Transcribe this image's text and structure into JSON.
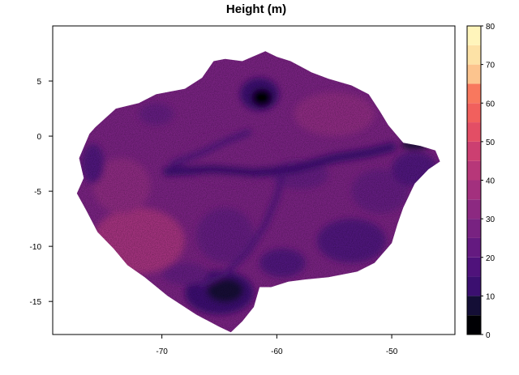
{
  "title": "Height (m)",
  "map": {
    "x_range": [
      -79.5,
      -44.5
    ],
    "y_range": [
      -18,
      10
    ],
    "x_ticks": [
      -70,
      -60,
      -50
    ],
    "y_ticks": [
      5,
      0,
      -5,
      -10,
      -15
    ],
    "region_outline": [
      [
        -75.8,
        0.8
      ],
      [
        -74.0,
        2.5
      ],
      [
        -72.0,
        3.0
      ],
      [
        -70.5,
        3.8
      ],
      [
        -68.0,
        4.3
      ],
      [
        -66.5,
        5.3
      ],
      [
        -65.5,
        6.8
      ],
      [
        -64.5,
        7.0
      ],
      [
        -63.0,
        6.8
      ],
      [
        -61.0,
        7.7
      ],
      [
        -60.0,
        7.2
      ],
      [
        -58.8,
        6.8
      ],
      [
        -57.0,
        5.8
      ],
      [
        -55.5,
        5.2
      ],
      [
        -53.5,
        4.6
      ],
      [
        -52.0,
        3.8
      ],
      [
        -51.0,
        2.2
      ],
      [
        -50.3,
        1.0
      ],
      [
        -49.0,
        -0.6
      ],
      [
        -47.5,
        -0.9
      ],
      [
        -46.2,
        -1.3
      ],
      [
        -45.8,
        -2.3
      ],
      [
        -46.8,
        -3.0
      ],
      [
        -48.0,
        -4.3
      ],
      [
        -49.0,
        -6.5
      ],
      [
        -49.5,
        -8.0
      ],
      [
        -50.0,
        -9.7
      ],
      [
        -51.5,
        -11.5
      ],
      [
        -53.0,
        -12.3
      ],
      [
        -55.5,
        -12.8
      ],
      [
        -57.5,
        -13.0
      ],
      [
        -59.0,
        -13.2
      ],
      [
        -60.5,
        -13.7
      ],
      [
        -61.5,
        -13.7
      ],
      [
        -62.0,
        -15.5
      ],
      [
        -63.0,
        -16.8
      ],
      [
        -64.0,
        -17.8
      ],
      [
        -65.0,
        -17.3
      ],
      [
        -67.0,
        -16.2
      ],
      [
        -69.5,
        -14.5
      ],
      [
        -71.5,
        -12.8
      ],
      [
        -73.0,
        -11.7
      ],
      [
        -74.2,
        -10.2
      ],
      [
        -75.6,
        -8.7
      ],
      [
        -76.6,
        -6.7
      ],
      [
        -77.4,
        -5.2
      ],
      [
        -76.8,
        -3.8
      ],
      [
        -77.2,
        -2.0
      ],
      [
        -76.8,
        -1.0
      ],
      [
        -76.3,
        0.2
      ]
    ],
    "base_height_m": 27,
    "height_zones": [
      {
        "kind": "ellipse",
        "cx": -72.0,
        "cy": -9.5,
        "rx": 4.0,
        "ry": 3.0,
        "height_m": 35
      },
      {
        "kind": "ellipse",
        "cx": -73.5,
        "cy": -4.5,
        "rx": 2.5,
        "ry": 2.5,
        "height_m": 32
      },
      {
        "kind": "ellipse",
        "cx": -55.0,
        "cy": 2.0,
        "rx": 3.5,
        "ry": 2.0,
        "height_m": 32
      },
      {
        "kind": "ellipse",
        "cx": -64.0,
        "cy": -2.0,
        "rx": 4.0,
        "ry": 2.2,
        "height_m": 29
      },
      {
        "kind": "ellipse",
        "cx": -51.0,
        "cy": -5.0,
        "rx": 2.5,
        "ry": 2.0,
        "height_m": 23
      },
      {
        "kind": "ellipse",
        "cx": -48.0,
        "cy": -3.0,
        "rx": 2.0,
        "ry": 1.6,
        "height_m": 18
      },
      {
        "kind": "ellipse",
        "cx": -53.5,
        "cy": -9.5,
        "rx": 3.0,
        "ry": 2.0,
        "height_m": 18
      },
      {
        "kind": "ellipse",
        "cx": -64.5,
        "cy": -9.0,
        "rx": 2.5,
        "ry": 2.5,
        "height_m": 20
      },
      {
        "kind": "ellipse",
        "cx": -65.0,
        "cy": -14.2,
        "rx": 3.0,
        "ry": 2.0,
        "height_m": 13
      },
      {
        "kind": "ellipse",
        "cx": -64.5,
        "cy": -14.0,
        "rx": 1.6,
        "ry": 1.1,
        "height_m": 6
      },
      {
        "kind": "ellipse",
        "cx": -61.5,
        "cy": 3.8,
        "rx": 1.7,
        "ry": 1.5,
        "height_m": 12
      },
      {
        "kind": "ellipse",
        "cx": -61.3,
        "cy": 3.5,
        "rx": 0.9,
        "ry": 0.8,
        "height_m": 4
      },
      {
        "kind": "ellipse",
        "cx": -48.0,
        "cy": -0.8,
        "rx": 1.2,
        "ry": 0.4,
        "height_m": 6
      },
      {
        "kind": "ellipse",
        "cx": -59.5,
        "cy": -11.5,
        "rx": 2.0,
        "ry": 1.3,
        "height_m": 17
      },
      {
        "kind": "ellipse",
        "cx": -76.0,
        "cy": -2.5,
        "rx": 1.0,
        "ry": 1.8,
        "height_m": 18
      },
      {
        "kind": "ellipse",
        "cx": -70.5,
        "cy": 2.0,
        "rx": 1.5,
        "ry": 1.0,
        "height_m": 20
      },
      {
        "kind": "ellipse",
        "cx": -58.0,
        "cy": -3.5,
        "rx": 2.5,
        "ry": 1.3,
        "height_m": 24
      },
      {
        "kind": "ellipse",
        "cx": -68.0,
        "cy": -12.5,
        "rx": 2.0,
        "ry": 1.0,
        "height_m": 21
      },
      {
        "kind": "line",
        "points": [
          [
            -69.5,
            -3.2
          ],
          [
            -65.5,
            -3.0
          ],
          [
            -62.0,
            -3.3
          ],
          [
            -58.5,
            -3.0
          ],
          [
            -55.0,
            -2.0
          ],
          [
            -52.0,
            -1.5
          ],
          [
            -50.0,
            -1.0
          ]
        ],
        "width": 0.8,
        "height_m": 12
      },
      {
        "kind": "line",
        "points": [
          [
            -69.0,
            -2.5
          ],
          [
            -66.5,
            -1.5
          ],
          [
            -64.5,
            -0.5
          ],
          [
            -62.5,
            0.3
          ]
        ],
        "width": 0.6,
        "height_m": 17
      },
      {
        "kind": "line",
        "points": [
          [
            -66.5,
            -13.5
          ],
          [
            -64.5,
            -12.5
          ],
          [
            -62.5,
            -10.5
          ],
          [
            -61.0,
            -8.0
          ],
          [
            -60.0,
            -5.5
          ],
          [
            -59.5,
            -3.5
          ]
        ],
        "width": 0.5,
        "height_m": 16
      }
    ],
    "legend": {
      "breaks": [
        0,
        5,
        10,
        15,
        20,
        25,
        30,
        35,
        40,
        45,
        50,
        55,
        60,
        65,
        70,
        75,
        80
      ],
      "colors": [
        "#000004",
        "#140e36",
        "#3b0f70",
        "#4f127b",
        "#641a80",
        "#782281",
        "#8c2981",
        "#a3307e",
        "#b73779",
        "#cc3f71",
        "#e34e65",
        "#f1605d",
        "#f8785e",
        "#fcc48e",
        "#fde2a6",
        "#fff5bb",
        "#fefcc8"
      ],
      "ticks": [
        0,
        10,
        20,
        30,
        40,
        50,
        60,
        70,
        80
      ]
    }
  }
}
